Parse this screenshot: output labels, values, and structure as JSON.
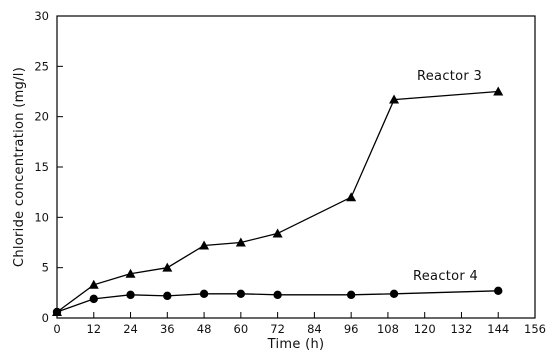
{
  "chart_data": {
    "type": "line",
    "title": "",
    "xlabel": "Time (h)",
    "ylabel": "Chloride concentration (mg/l)",
    "xlim": [
      0,
      156
    ],
    "ylim": [
      0,
      30
    ],
    "xticks": [
      0,
      12,
      24,
      36,
      48,
      60,
      72,
      84,
      96,
      108,
      120,
      132,
      144,
      156
    ],
    "yticks": [
      0,
      5,
      10,
      15,
      20,
      25,
      30
    ],
    "xtick_labels": [
      "0",
      "12",
      "24",
      "36",
      "48",
      "60",
      "72",
      "84",
      "96",
      "108",
      "120",
      "132",
      "144",
      "156"
    ],
    "ytick_labels": [
      "0",
      "5",
      "10",
      "15",
      "20",
      "25",
      "30"
    ],
    "grid": false,
    "series": [
      {
        "name": "Reactor 3",
        "marker": "triangle",
        "color": "#000000",
        "x": [
          0,
          12,
          24,
          36,
          48,
          60,
          72,
          96,
          110,
          144
        ],
        "y": [
          0.6,
          3.3,
          4.4,
          5.0,
          7.2,
          7.5,
          8.4,
          12.0,
          21.7,
          22.5
        ]
      },
      {
        "name": "Reactor 4",
        "marker": "circle",
        "color": "#000000",
        "x": [
          0,
          12,
          24,
          36,
          48,
          60,
          72,
          96,
          110,
          144
        ],
        "y": [
          0.6,
          1.9,
          2.3,
          2.2,
          2.4,
          2.4,
          2.3,
          2.3,
          2.4,
          2.7
        ]
      }
    ]
  }
}
